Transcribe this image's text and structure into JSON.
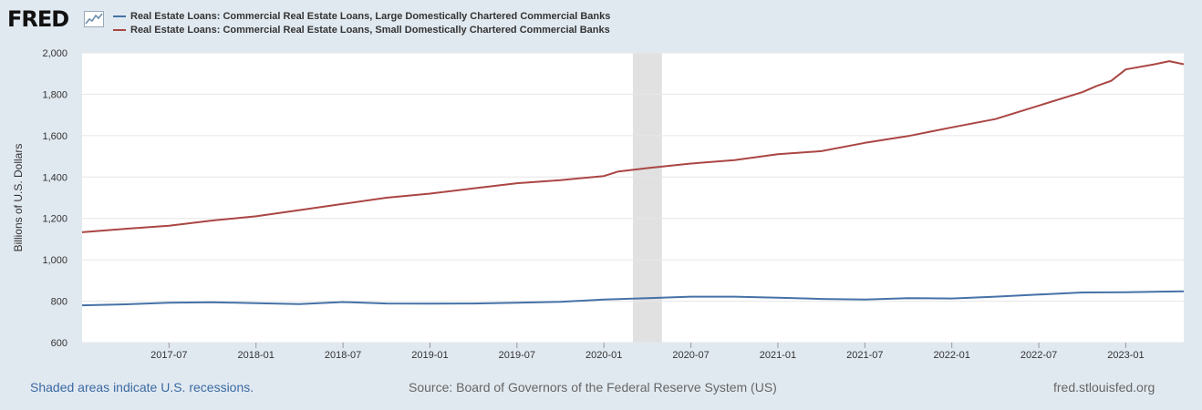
{
  "logo": {
    "text": "FRED",
    "graph_icon": "chart-line-icon"
  },
  "legend": [
    {
      "label": "Real Estate Loans: Commercial Real Estate Loans, Large Domestically Chartered Commercial Banks",
      "color": "#4572a7"
    },
    {
      "label": "Real Estate Loans: Commercial Real Estate Loans, Small Domestically Chartered Commercial Banks",
      "color": "#aa4643"
    }
  ],
  "footer": {
    "recession_note": "Shaded areas indicate U.S. recessions.",
    "source": "Source: Board of Governors of the Federal Reserve System (US)",
    "site": "fred.stlouisfed.org"
  },
  "chart_data": {
    "type": "line",
    "title": "",
    "xlabel": "",
    "ylabel": "Billions of U.S. Dollars",
    "ylim": [
      600,
      2000
    ],
    "xlim": [
      "2017-01",
      "2023-05"
    ],
    "yticks": [
      600,
      800,
      1000,
      1200,
      1400,
      1600,
      1800,
      2000
    ],
    "ytick_labels": [
      "600",
      "800",
      "1,000",
      "1,200",
      "1,400",
      "1,600",
      "1,800",
      "2,000"
    ],
    "xticks": [
      "2017-07",
      "2018-01",
      "2018-07",
      "2019-01",
      "2019-07",
      "2020-01",
      "2020-07",
      "2021-01",
      "2021-07",
      "2022-01",
      "2022-07",
      "2023-01"
    ],
    "grid": true,
    "recessions": [
      {
        "start": "2020-03",
        "end": "2020-05"
      }
    ],
    "series": [
      {
        "name": "Real Estate Loans: Commercial Real Estate Loans, Large Domestically Chartered Commercial Banks",
        "color": "#4572a7",
        "points": [
          [
            "2017-01",
            780
          ],
          [
            "2017-04",
            785
          ],
          [
            "2017-07",
            793
          ],
          [
            "2017-10",
            795
          ],
          [
            "2018-01",
            790
          ],
          [
            "2018-04",
            786
          ],
          [
            "2018-06",
            793
          ],
          [
            "2018-07",
            796
          ],
          [
            "2018-10",
            789
          ],
          [
            "2019-01",
            788
          ],
          [
            "2019-04",
            789
          ],
          [
            "2019-07",
            793
          ],
          [
            "2019-10",
            797
          ],
          [
            "2020-01",
            808
          ],
          [
            "2020-04",
            815
          ],
          [
            "2020-07",
            822
          ],
          [
            "2020-10",
            822
          ],
          [
            "2021-01",
            817
          ],
          [
            "2021-04",
            811
          ],
          [
            "2021-07",
            808
          ],
          [
            "2021-10",
            815
          ],
          [
            "2022-01",
            813
          ],
          [
            "2022-04",
            822
          ],
          [
            "2022-07",
            832
          ],
          [
            "2022-10",
            842
          ],
          [
            "2023-01",
            843
          ],
          [
            "2023-05",
            848
          ]
        ]
      },
      {
        "name": "Real Estate Loans: Commercial Real Estate Loans, Small Domestically Chartered Commercial Banks",
        "color": "#aa4643",
        "points": [
          [
            "2017-01",
            1133
          ],
          [
            "2017-04",
            1150
          ],
          [
            "2017-07",
            1165
          ],
          [
            "2017-10",
            1190
          ],
          [
            "2018-01",
            1210
          ],
          [
            "2018-04",
            1240
          ],
          [
            "2018-07",
            1270
          ],
          [
            "2018-10",
            1300
          ],
          [
            "2019-01",
            1320
          ],
          [
            "2019-04",
            1345
          ],
          [
            "2019-07",
            1370
          ],
          [
            "2019-10",
            1385
          ],
          [
            "2020-01",
            1405
          ],
          [
            "2020-02",
            1427
          ],
          [
            "2020-04",
            1443
          ],
          [
            "2020-07",
            1465
          ],
          [
            "2020-10",
            1482
          ],
          [
            "2021-01",
            1510
          ],
          [
            "2021-04",
            1525
          ],
          [
            "2021-07",
            1565
          ],
          [
            "2021-10",
            1598
          ],
          [
            "2022-01",
            1640
          ],
          [
            "2022-04",
            1680
          ],
          [
            "2022-07",
            1745
          ],
          [
            "2022-10",
            1810
          ],
          [
            "2022-11",
            1840
          ],
          [
            "2022-12",
            1865
          ],
          [
            "2023-01",
            1920
          ],
          [
            "2023-03",
            1945
          ],
          [
            "2023-04",
            1960
          ],
          [
            "2023-05",
            1945
          ]
        ]
      }
    ]
  }
}
